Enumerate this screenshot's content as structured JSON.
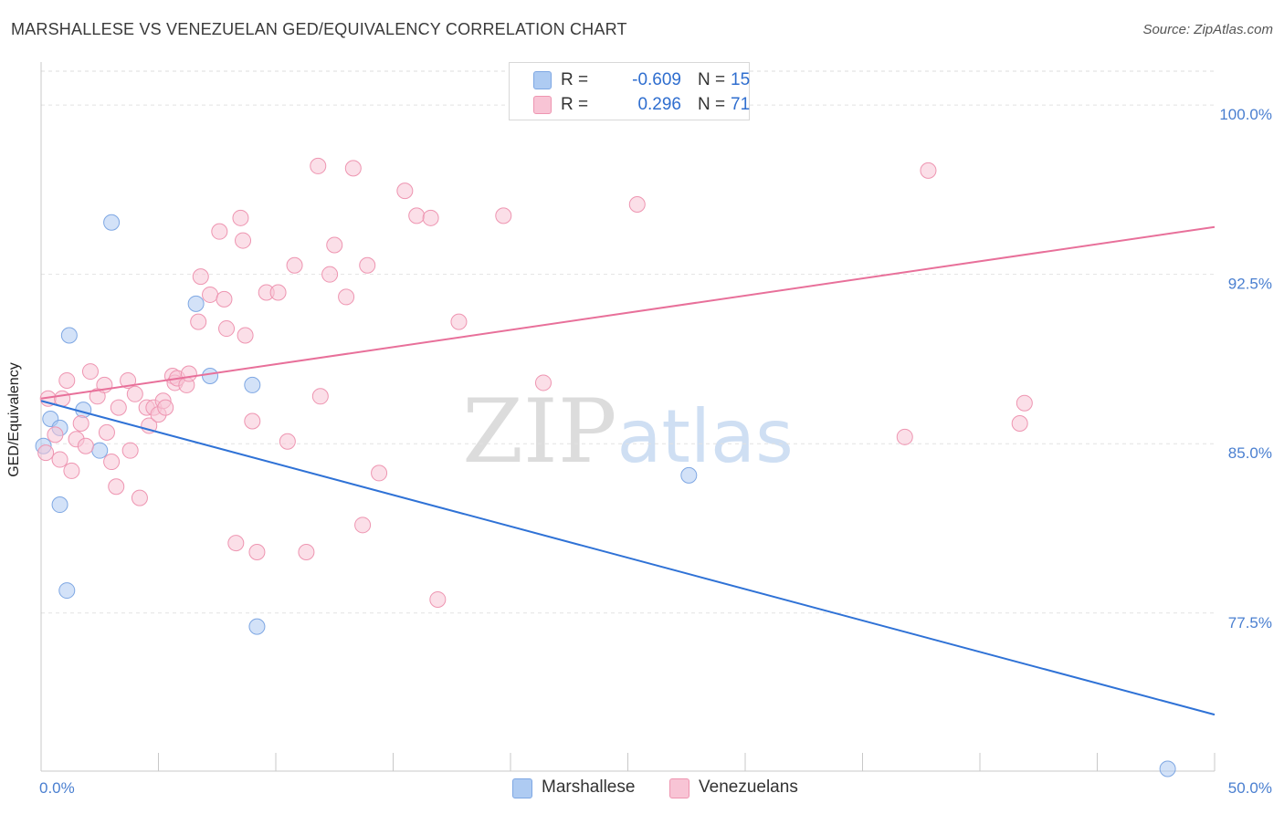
{
  "title": "MARSHALLESE VS VENEZUELAN GED/EQUIVALENCY CORRELATION CHART",
  "source": "Source: ZipAtlas.com",
  "watermark": "ZIPatlas",
  "legend": {
    "rows": [
      {
        "r_label": "R =",
        "r_value": "-0.609",
        "n_label": "N =",
        "n_value": "15",
        "color": "#aecbf2",
        "border": "#7ea7e3"
      },
      {
        "r_label": "R =",
        "r_value": "0.296",
        "n_label": "N =",
        "n_value": "71",
        "color": "#f8c4d5",
        "border": "#ee95b1"
      }
    ]
  },
  "bottom_legend": [
    {
      "label": "Marshallese",
      "color": "#aecbf2",
      "border": "#7ea7e3"
    },
    {
      "label": "Venezuelans",
      "color": "#f8c4d5",
      "border": "#ee95b1"
    }
  ],
  "chart_data": {
    "type": "scatter",
    "title": "MARSHALLESE VS VENEZUELAN GED/EQUIVALENCY CORRELATION CHART",
    "xlabel": "",
    "ylabel": "GED/Equivalency",
    "xlim": [
      0,
      50
    ],
    "ylim": [
      70.5,
      101.5
    ],
    "x_tick_labels": [
      "0.0%",
      "50.0%"
    ],
    "y_ticks": [
      {
        "value": 100.0,
        "label": "100.0%"
      },
      {
        "value": 92.5,
        "label": "92.5%"
      },
      {
        "value": 85.0,
        "label": "85.0%"
      },
      {
        "value": 77.5,
        "label": "77.5%"
      }
    ],
    "grid": true,
    "series": [
      {
        "name": "Marshallese",
        "color": "#aecbf2",
        "stroke": "#7ea7e3",
        "trend_color": "#2f72d6",
        "trend": {
          "x": [
            0.0,
            50.0
          ],
          "y": [
            86.9,
            73.0
          ]
        },
        "points": [
          [
            0.1,
            84.9
          ],
          [
            0.4,
            86.1
          ],
          [
            0.8,
            85.7
          ],
          [
            0.8,
            82.3
          ],
          [
            1.1,
            78.5
          ],
          [
            1.2,
            89.8
          ],
          [
            1.8,
            86.5
          ],
          [
            2.5,
            84.7
          ],
          [
            3.0,
            94.8
          ],
          [
            6.6,
            91.2
          ],
          [
            7.2,
            88.0
          ],
          [
            9.0,
            87.6
          ],
          [
            9.2,
            76.9
          ],
          [
            27.6,
            83.6
          ],
          [
            48.0,
            70.6
          ]
        ]
      },
      {
        "name": "Venezuelans",
        "color": "#f8c4d5",
        "stroke": "#ee95b1",
        "trend_color": "#e8709a",
        "trend": {
          "x": [
            0.0,
            50.0
          ],
          "y": [
            87.0,
            94.6
          ]
        },
        "points": [
          [
            0.2,
            84.6
          ],
          [
            0.3,
            87.0
          ],
          [
            0.6,
            85.4
          ],
          [
            0.8,
            84.3
          ],
          [
            0.9,
            87.0
          ],
          [
            1.1,
            87.8
          ],
          [
            1.3,
            83.8
          ],
          [
            1.5,
            85.2
          ],
          [
            1.7,
            85.9
          ],
          [
            1.9,
            84.9
          ],
          [
            2.1,
            88.2
          ],
          [
            2.4,
            87.1
          ],
          [
            2.7,
            87.6
          ],
          [
            2.8,
            85.5
          ],
          [
            3.0,
            84.2
          ],
          [
            3.2,
            83.1
          ],
          [
            3.3,
            86.6
          ],
          [
            3.7,
            87.8
          ],
          [
            3.8,
            84.7
          ],
          [
            4.0,
            87.2
          ],
          [
            4.2,
            82.6
          ],
          [
            4.5,
            86.6
          ],
          [
            4.6,
            85.8
          ],
          [
            4.8,
            86.6
          ],
          [
            5.0,
            86.3
          ],
          [
            5.2,
            86.9
          ],
          [
            5.3,
            86.6
          ],
          [
            5.6,
            88.0
          ],
          [
            5.7,
            87.7
          ],
          [
            5.8,
            87.9
          ],
          [
            6.2,
            87.6
          ],
          [
            6.3,
            88.1
          ],
          [
            6.7,
            90.4
          ],
          [
            6.8,
            92.4
          ],
          [
            7.2,
            91.6
          ],
          [
            7.6,
            94.4
          ],
          [
            7.8,
            91.4
          ],
          [
            7.9,
            90.1
          ],
          [
            8.3,
            80.6
          ],
          [
            8.5,
            95.0
          ],
          [
            8.6,
            94.0
          ],
          [
            8.7,
            89.8
          ],
          [
            9.0,
            86.0
          ],
          [
            9.2,
            80.2
          ],
          [
            9.6,
            91.7
          ],
          [
            10.1,
            91.7
          ],
          [
            10.5,
            85.1
          ],
          [
            10.8,
            92.9
          ],
          [
            11.3,
            80.2
          ],
          [
            11.8,
            97.3
          ],
          [
            11.9,
            87.1
          ],
          [
            12.3,
            92.5
          ],
          [
            12.5,
            93.8
          ],
          [
            13.0,
            91.5
          ],
          [
            13.3,
            97.2
          ],
          [
            13.7,
            81.4
          ],
          [
            13.9,
            92.9
          ],
          [
            14.4,
            83.7
          ],
          [
            15.5,
            96.2
          ],
          [
            16.0,
            95.1
          ],
          [
            16.6,
            95.0
          ],
          [
            16.9,
            78.1
          ],
          [
            17.8,
            90.4
          ],
          [
            19.7,
            95.1
          ],
          [
            21.4,
            87.7
          ],
          [
            21.8,
            100.0
          ],
          [
            25.4,
            95.6
          ],
          [
            36.8,
            85.3
          ],
          [
            37.8,
            97.1
          ],
          [
            41.7,
            85.9
          ],
          [
            41.9,
            86.8
          ]
        ]
      }
    ]
  }
}
